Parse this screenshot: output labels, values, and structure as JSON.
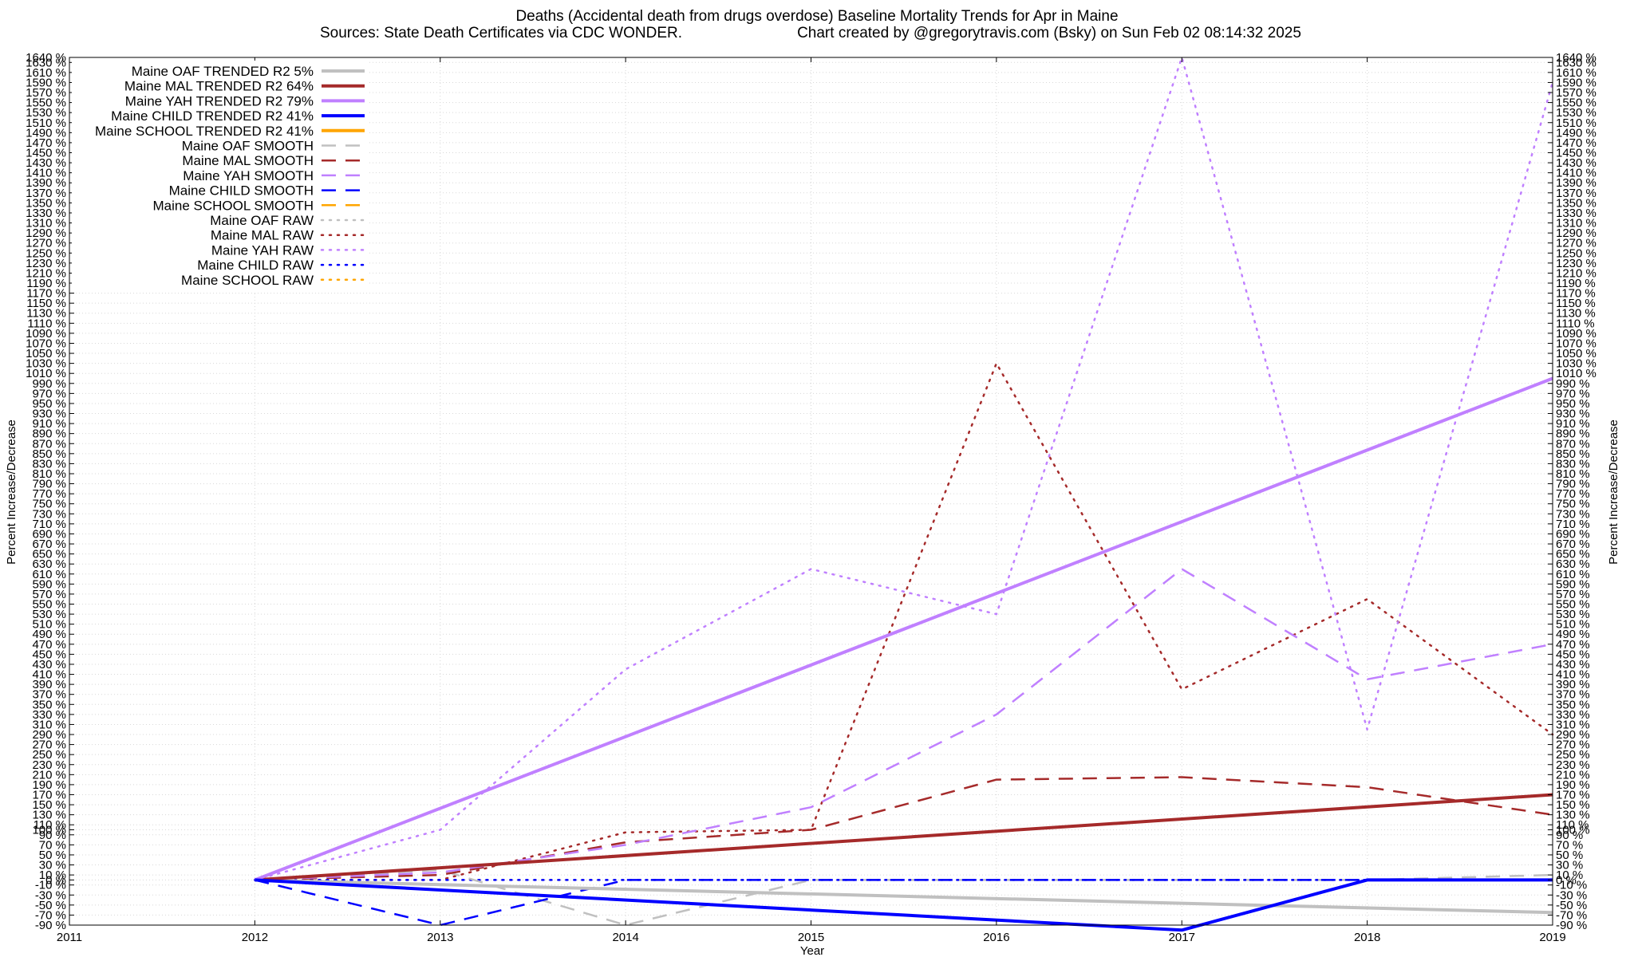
{
  "chart_data": {
    "type": "line",
    "title_line1": "Deaths (Accidental death from drugs overdose)  Baseline Mortality Trends for Apr in Maine",
    "title_line2_left": "Sources: State Death Certificates via CDC WONDER.",
    "title_line2_right": "Chart created by @gregorytravis.com (Bsky) on Sun Feb 02 08:14:32 2025",
    "xlabel": "Year",
    "ylabel_left": "Percent Increase/Decrease",
    "ylabel_right": "Percent Increase/Decrease",
    "xlim": [
      2011,
      2019
    ],
    "ylim": [
      -90,
      1640
    ],
    "x_ticks": [
      "2011",
      "2012",
      "2013",
      "2014",
      "2015",
      "2016",
      "2017",
      "2018",
      "2019"
    ],
    "y_tick_values": [
      -90,
      -70,
      -50,
      -30,
      -10,
      0,
      10,
      30,
      50,
      70,
      90,
      100,
      110,
      130,
      150,
      170,
      190,
      210,
      230,
      250,
      270,
      290,
      310,
      330,
      350,
      370,
      390,
      410,
      430,
      450,
      470,
      490,
      510,
      530,
      550,
      570,
      590,
      610,
      630,
      650,
      670,
      690,
      710,
      730,
      750,
      770,
      790,
      810,
      830,
      850,
      870,
      890,
      910,
      930,
      950,
      970,
      990,
      1010,
      1030,
      1050,
      1070,
      1090,
      1110,
      1130,
      1150,
      1170,
      1190,
      1210,
      1230,
      1250,
      1270,
      1290,
      1310,
      1330,
      1350,
      1370,
      1390,
      1410,
      1430,
      1450,
      1470,
      1490,
      1510,
      1530,
      1550,
      1570,
      1590,
      1610,
      1630,
      1640
    ],
    "y_tick_suffix": " %",
    "grid": true,
    "legend_position": "top-left",
    "series": [
      {
        "name": "Maine OAF TRENDED R2   5%",
        "style": "solid",
        "color": "#c0c0c0",
        "width": 4,
        "x": [
          2012,
          2019
        ],
        "y": [
          0,
          -65
        ]
      },
      {
        "name": "Maine MAL TRENDED R2  64%",
        "style": "solid",
        "color": "#a52a2a",
        "width": 4,
        "x": [
          2012,
          2019
        ],
        "y": [
          0,
          170
        ]
      },
      {
        "name": "Maine YAH TRENDED R2  79%",
        "style": "solid",
        "color": "#c080ff",
        "width": 4,
        "x": [
          2012,
          2019
        ],
        "y": [
          0,
          1000
        ]
      },
      {
        "name": "Maine CHILD TRENDED R2  41%",
        "style": "solid",
        "color": "#0000ff",
        "width": 4,
        "x": [
          2012,
          2017,
          2018,
          2019
        ],
        "y": [
          0,
          -100,
          0,
          0
        ]
      },
      {
        "name": "Maine SCHOOL TRENDED R2  41%",
        "style": "solid",
        "color": "#ffa500",
        "width": 4,
        "x": [],
        "y": []
      },
      {
        "name": "Maine OAF SMOOTH",
        "style": "dashed",
        "color": "#c0c0c0",
        "width": 2.5,
        "x": [
          2012,
          2013,
          2014,
          2015,
          2016,
          2017,
          2018,
          2019
        ],
        "y": [
          0,
          20,
          -90,
          0,
          0,
          0,
          0,
          10
        ]
      },
      {
        "name": "Maine MAL SMOOTH",
        "style": "dashed",
        "color": "#a52a2a",
        "width": 2.5,
        "x": [
          2012,
          2013,
          2014,
          2015,
          2016,
          2017,
          2018,
          2019
        ],
        "y": [
          0,
          10,
          75,
          100,
          200,
          205,
          185,
          130
        ]
      },
      {
        "name": "Maine YAH SMOOTH",
        "style": "dashed",
        "color": "#c080ff",
        "width": 2.5,
        "x": [
          2012,
          2013,
          2014,
          2015,
          2016,
          2017,
          2018,
          2019
        ],
        "y": [
          0,
          15,
          70,
          145,
          330,
          620,
          400,
          470
        ]
      },
      {
        "name": "Maine CHILD SMOOTH",
        "style": "dashed",
        "color": "#0000ff",
        "width": 2.5,
        "x": [
          2012,
          2013,
          2014,
          2015,
          2016,
          2017,
          2018,
          2019
        ],
        "y": [
          0,
          -90,
          0,
          0,
          0,
          0,
          0,
          0
        ]
      },
      {
        "name": "Maine SCHOOL SMOOTH",
        "style": "dashed",
        "color": "#ffa500",
        "width": 2.5,
        "x": [],
        "y": []
      },
      {
        "name": "Maine OAF RAW",
        "style": "dotted",
        "color": "#c0c0c0",
        "width": 2.5,
        "x": [
          2012,
          2013,
          2014,
          2015,
          2016,
          2017,
          2018,
          2019
        ],
        "y": [
          0,
          0,
          0,
          0,
          0,
          0,
          0,
          0
        ]
      },
      {
        "name": "Maine MAL RAW",
        "style": "dotted",
        "color": "#a52a2a",
        "width": 2.5,
        "x": [
          2012,
          2013,
          2014,
          2015,
          2016,
          2017,
          2018,
          2019
        ],
        "y": [
          0,
          0,
          95,
          100,
          1030,
          380,
          560,
          290
        ]
      },
      {
        "name": "Maine YAH RAW",
        "style": "dotted",
        "color": "#c080ff",
        "width": 2.5,
        "x": [
          2012,
          2013,
          2014,
          2015,
          2016,
          2017,
          2018,
          2019
        ],
        "y": [
          0,
          100,
          420,
          620,
          530,
          1640,
          300,
          1590
        ]
      },
      {
        "name": "Maine CHILD RAW",
        "style": "dotted",
        "color": "#0000ff",
        "width": 2.5,
        "x": [
          2012,
          2013,
          2014,
          2015,
          2016,
          2017,
          2018,
          2019
        ],
        "y": [
          0,
          0,
          0,
          0,
          0,
          0,
          0,
          0
        ]
      },
      {
        "name": "Maine SCHOOL RAW",
        "style": "dotted",
        "color": "#ffa500",
        "width": 2.5,
        "x": [],
        "y": []
      }
    ]
  }
}
